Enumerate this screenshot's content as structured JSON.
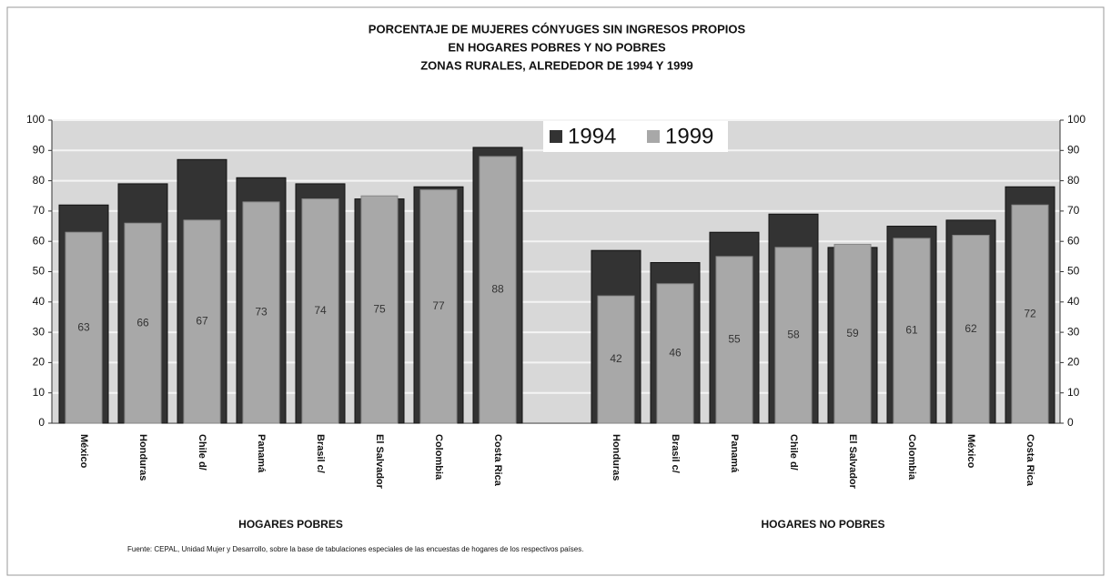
{
  "chart_data": {
    "type": "bar",
    "title": [
      "PORCENTAJE DE MUJERES CÓNYUGES  SIN INGRESOS PROPIOS",
      "EN  HOGARES POBRES Y NO POBRES",
      "ZONAS RURALES,  ALREDEDOR DE 1994 Y 1999"
    ],
    "groups": [
      {
        "label": "HOGARES POBRES",
        "categories": [
          "México",
          "Honduras",
          "Chile d/",
          "Panamá",
          "Brasil c/",
          "El Salvador",
          "Colombia",
          "Costa Rica"
        ]
      },
      {
        "label": "HOGARES NO POBRES",
        "categories": [
          "Honduras",
          "Brasil c/",
          "Panamá",
          "Chile d/",
          "El Salvador",
          "Colombia",
          "México",
          "Costa Rica"
        ]
      }
    ],
    "series": [
      {
        "name": "1994",
        "color": "#333333",
        "values": [
          [
            72,
            79,
            87,
            81,
            79,
            74,
            78,
            91
          ],
          [
            57,
            53,
            63,
            69,
            58,
            65,
            67,
            78
          ]
        ]
      },
      {
        "name": "1999",
        "color": "#a8a8a8",
        "values": [
          [
            63,
            66,
            67,
            73,
            74,
            75,
            77,
            88
          ],
          [
            42,
            46,
            55,
            58,
            59,
            61,
            62,
            72
          ]
        ],
        "labels": true
      }
    ],
    "ylim": [
      0,
      100
    ],
    "yticks": [
      0,
      10,
      20,
      30,
      40,
      50,
      60,
      70,
      80,
      90,
      100
    ],
    "y2lim": [
      0,
      100
    ],
    "y2ticks": [
      0,
      10,
      20,
      30,
      40,
      50,
      60,
      70,
      80,
      90,
      100
    ],
    "grid": true,
    "legend": "top",
    "source": "Fuente: CEPAL, Unidad Mujer y Desarrollo,  sobre la base de tabulaciones especiales de las encuestas de hogares  de los respectivos países."
  }
}
